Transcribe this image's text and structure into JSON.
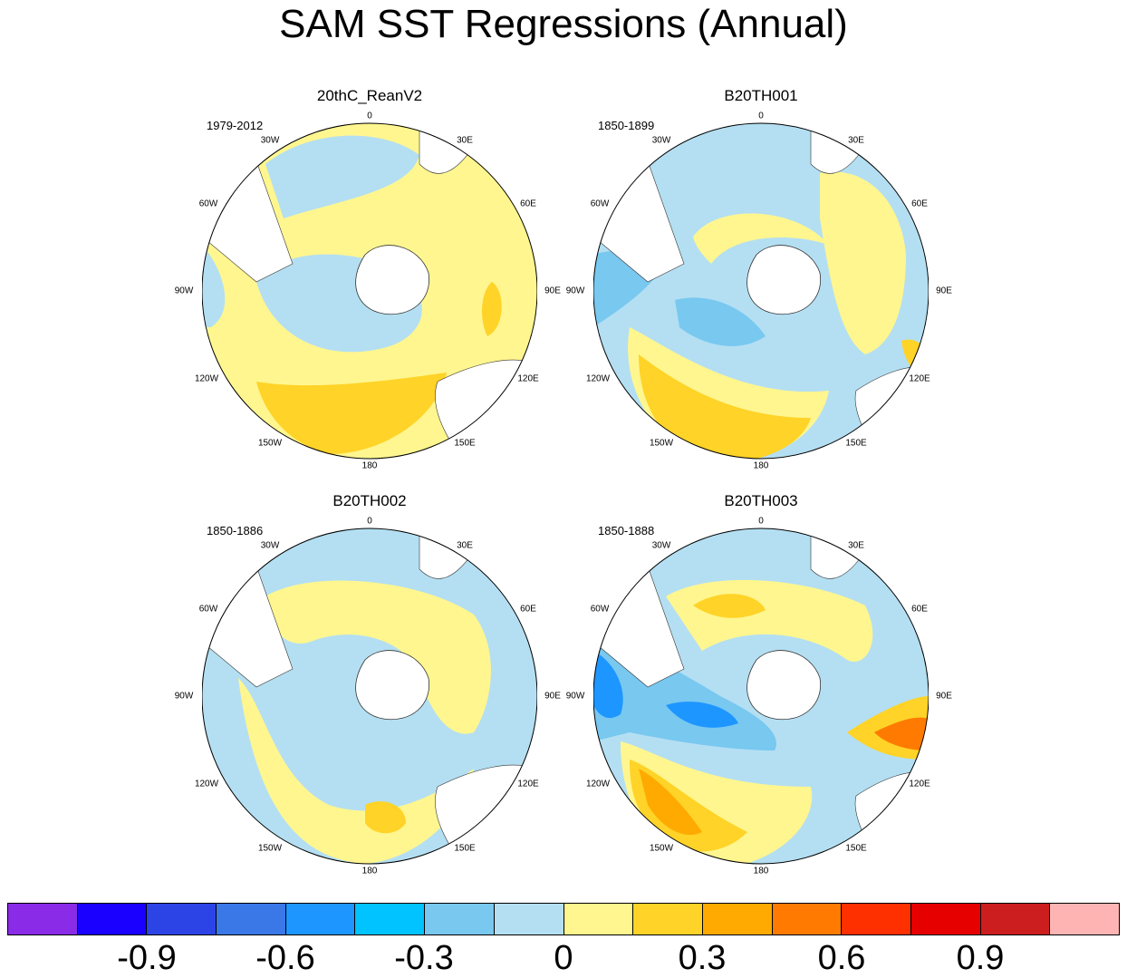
{
  "title": "SAM SST Regressions (Annual)",
  "panels": [
    {
      "name": "20thC_ReanV2",
      "years": "1979-2012"
    },
    {
      "name": "B20TH001",
      "years": "1850-1899"
    },
    {
      "name": "B20TH002",
      "years": "1850-1886"
    },
    {
      "name": "B20TH003",
      "years": "1850-1888"
    }
  ],
  "lon_labels": [
    "0",
    "30E",
    "60E",
    "90E",
    "120E",
    "150E",
    "180",
    "150W",
    "120W",
    "90W",
    "60W",
    "30W"
  ],
  "colorbar": {
    "colors": [
      "#8a2be8",
      "#1a00ff",
      "#2c44e6",
      "#3a78e8",
      "#1e96ff",
      "#00c3ff",
      "#78c8f0",
      "#b4dff2",
      "#fff68f",
      "#ffd327",
      "#ffaa00",
      "#ff7a00",
      "#ff3000",
      "#e60000",
      "#cc1e1e",
      "#ffb4b4"
    ],
    "tick_labels": [
      "-0.9",
      "-0.6",
      "-0.3",
      "0",
      "0.3",
      "0.6",
      "0.9"
    ]
  }
}
